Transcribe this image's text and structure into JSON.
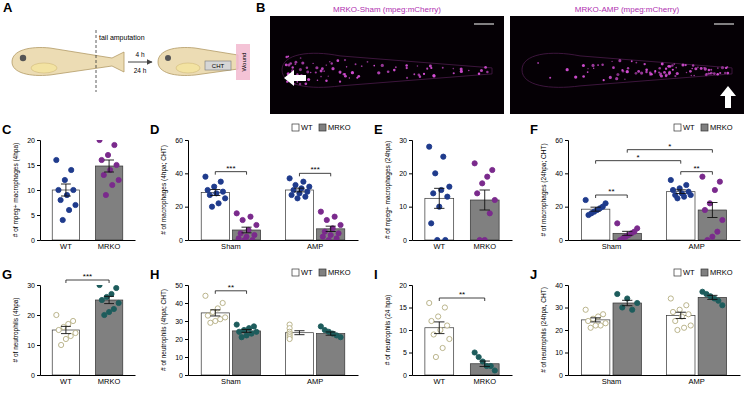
{
  "schematic": {
    "panel": "A",
    "cut_label": "tail amputation",
    "times": [
      "4 h",
      "24 h"
    ],
    "wound": "Wound",
    "region": "CHT"
  },
  "images": {
    "panel": "B",
    "titles": [
      "MRKO-Sham (mpeg:mCherry)",
      "MRKO-AMP (mpeg:mCherry)"
    ]
  },
  "chart_data": [
    {
      "type": "bar",
      "title": "C",
      "ylabel": "# of mpeg+ macrophages (4hpa)",
      "categories": [
        "WT",
        "MRKO"
      ],
      "colors": [
        "#ffffff",
        "#808080"
      ],
      "series": [
        {
          "values": [
            10,
            14.8
          ],
          "errors": [
            1.2,
            1.2
          ],
          "points": [
            [
              16,
              14,
              12,
              10,
              10,
              9,
              8,
              7,
              6,
              4
            ],
            [
              20,
              19,
              17,
              16,
              15,
              14,
              13,
              12,
              11,
              9
            ]
          ]
        }
      ],
      "ylim": [
        0,
        20
      ],
      "yticks": [
        0,
        5,
        10,
        15,
        20
      ],
      "annotations": []
    },
    {
      "type": "bar",
      "title": "D",
      "ylabel": "# of macrophages (4hpa; CHT)",
      "categories": [
        "Sham",
        "AMP"
      ],
      "legend": "top-right",
      "series": [
        {
          "name": "WT",
          "color": "#ffffff",
          "values": [
            28.5,
            30
          ],
          "errors": [
            1.8,
            1.1
          ],
          "points": [
            [
              38,
              35,
              32,
              30,
              29,
              28,
              27,
              25,
              22,
              20
            ],
            [
              37,
              35,
              33,
              32,
              31,
              30,
              29,
              28,
              27,
              26,
              25
            ]
          ]
        },
        {
          "name": "MRKO",
          "color": "#808080",
          "values": [
            6,
            6.7
          ],
          "errors": [
            1.7,
            1.6
          ],
          "points": [
            [
              16,
              14,
              12,
              9,
              6,
              4,
              3,
              2,
              1,
              0,
              0
            ],
            [
              17,
              14,
              12,
              9,
              7,
              5,
              4,
              3,
              2,
              1,
              0
            ]
          ]
        }
      ],
      "ylim": [
        0,
        60
      ],
      "yticks": [
        0,
        20,
        40,
        60
      ],
      "annotations": [
        {
          "text": "***",
          "from": [
            "Sham",
            "WT"
          ],
          "to": [
            "Sham",
            "MRKO"
          ]
        },
        {
          "text": "***",
          "from": [
            "AMP",
            "WT"
          ],
          "to": [
            "AMP",
            "MRKO"
          ]
        }
      ]
    },
    {
      "type": "bar",
      "title": "E",
      "ylabel": "# of mpeg+ macrophages (24hpa)",
      "categories": [
        "WT",
        "MRKO"
      ],
      "colors": [
        "#ffffff",
        "#808080"
      ],
      "series": [
        {
          "values": [
            12.5,
            12
          ],
          "errors": [
            3,
            3
          ],
          "points": [
            [
              28,
              25,
              20,
              16,
              15,
              14,
              13,
              10,
              5,
              0,
              0
            ],
            [
              23,
              21,
              19,
              17,
              14,
              12,
              8,
              0,
              0
            ]
          ]
        }
      ],
      "ylim": [
        0,
        30
      ],
      "yticks": [
        0,
        10,
        20,
        30
      ],
      "annotations": []
    },
    {
      "type": "bar",
      "title": "F",
      "ylabel": "# of macrophages (24hpa; CHT)",
      "categories": [
        "Sham",
        "AMP"
      ],
      "legend": "top-right",
      "series": [
        {
          "name": "WT",
          "color": "#ffffff",
          "values": [
            18.5,
            29
          ],
          "errors": [
            1.2,
            1.1
          ],
          "points": [
            [
              24,
              22,
              20,
              19,
              18,
              17,
              16,
              15
            ],
            [
              36,
              33,
              31,
              30,
              29,
              28,
              27,
              27,
              26,
              25
            ]
          ]
        },
        {
          "name": "MRKO",
          "color": "#808080",
          "values": [
            4,
            18
          ],
          "errors": [
            1.2,
            4.5
          ],
          "points": [
            [
              10,
              7,
              5,
              4,
              3,
              2,
              1,
              0
            ],
            [
              38,
              35,
              30,
              22,
              18,
              12,
              5,
              2,
              0
            ]
          ]
        }
      ],
      "ylim": [
        0,
        60
      ],
      "yticks": [
        0,
        20,
        40,
        60
      ],
      "annotations": [
        {
          "text": "**",
          "from": [
            "Sham",
            "WT"
          ],
          "to": [
            "Sham",
            "MRKO"
          ]
        },
        {
          "text": "**",
          "from": [
            "AMP",
            "WT"
          ],
          "to": [
            "AMP",
            "MRKO"
          ]
        },
        {
          "text": "*",
          "from": [
            "Sham",
            "WT"
          ],
          "to": [
            "AMP",
            "WT"
          ]
        },
        {
          "text": "*",
          "from": [
            "Sham",
            "MRKO"
          ],
          "to": [
            "AMP",
            "MRKO"
          ]
        }
      ]
    },
    {
      "type": "bar",
      "title": "G",
      "ylabel": "# of neutrophils (4hpa)",
      "categories": [
        "WT",
        "MRKO"
      ],
      "colors": [
        "#ffffff",
        "#808080"
      ],
      "series": [
        {
          "values": [
            15,
            25
          ],
          "errors": [
            1.2,
            1.2
          ],
          "points": [
            [
              20,
              18,
              17,
              16,
              15,
              14,
              13,
              12,
              10
            ],
            [
              30,
              29,
              27,
              26,
              25,
              24,
              22,
              21,
              20
            ]
          ]
        }
      ],
      "ylim": [
        0,
        30
      ],
      "yticks": [
        0,
        10,
        20,
        30
      ],
      "annotations": [
        {
          "text": "***",
          "from": "WT",
          "to": "MRKO"
        }
      ]
    },
    {
      "type": "bar",
      "title": "H",
      "ylabel": "# of neutrophils (4hpa; CHT)",
      "categories": [
        "Sham",
        "AMP"
      ],
      "legend": "top-right",
      "series": [
        {
          "name": "WT",
          "color": "#ffffff",
          "values": [
            34.5,
            23.5
          ],
          "errors": [
            1.7,
            1.1
          ],
          "points": [
            [
              44,
              40,
              37,
              35,
              33,
              32,
              31,
              30,
              29
            ],
            [
              28,
              26,
              24,
              23,
              22,
              21,
              20
            ]
          ]
        },
        {
          "name": "MRKO",
          "color": "#808080",
          "values": [
            24.5,
            23
          ],
          "errors": [
            0.8,
            0.9
          ],
          "points": [
            [
              28,
              27,
              26,
              25,
              24,
              24,
              23,
              22,
              21
            ],
            [
              27,
              25,
              24,
              23,
              22,
              21
            ]
          ]
        }
      ],
      "ylim": [
        0,
        50
      ],
      "yticks": [
        0,
        10,
        20,
        30,
        40,
        50
      ],
      "annotations": [
        {
          "text": "**",
          "from": [
            "Sham",
            "WT"
          ],
          "to": [
            "Sham",
            "MRKO"
          ]
        }
      ]
    },
    {
      "type": "bar",
      "title": "I",
      "ylabel": "# of neutrophils (24 hpa)",
      "categories": [
        "WT",
        "MRKO"
      ],
      "colors": [
        "#ffffff",
        "#808080"
      ],
      "series": [
        {
          "values": [
            10.5,
            2.5
          ],
          "errors": [
            1.3,
            0.6
          ],
          "points": [
            [
              16,
              15,
              13,
              12,
              11,
              10,
              9,
              8,
              6,
              4
            ],
            [
              5,
              4,
              3,
              2,
              2,
              1
            ]
          ]
        }
      ],
      "ylim": [
        0,
        20
      ],
      "yticks": [
        0,
        5,
        10,
        15,
        20
      ],
      "annotations": [
        {
          "text": "**",
          "from": "WT",
          "to": "MRKO"
        }
      ]
    },
    {
      "type": "bar",
      "title": "J",
      "ylabel": "# of neutrophils (24hpa, CHT)",
      "categories": [
        "Sham",
        "AMP"
      ],
      "legend": "top-right",
      "series": [
        {
          "name": "WT",
          "color": "#ffffff",
          "values": [
            24.5,
            26.5
          ],
          "errors": [
            0.9,
            1.4
          ],
          "points": [
            [
              29,
              27,
              26,
              25,
              24,
              23,
              22,
              22,
              21
            ],
            [
              34,
              31,
              29,
              28,
              27,
              26,
              24,
              22,
              21,
              20
            ]
          ]
        },
        {
          "name": "MRKO",
          "color": "#808080",
          "values": [
            32,
            34.5
          ],
          "errors": [
            1.2,
            0.9
          ],
          "points": [
            [
              36,
              34,
              32,
              30,
              29
            ],
            [
              37,
              36,
              35,
              34,
              33,
              31
            ]
          ]
        }
      ],
      "ylim": [
        0,
        40
      ],
      "yticks": [
        0,
        10,
        20,
        30,
        40
      ],
      "annotations": []
    }
  ]
}
